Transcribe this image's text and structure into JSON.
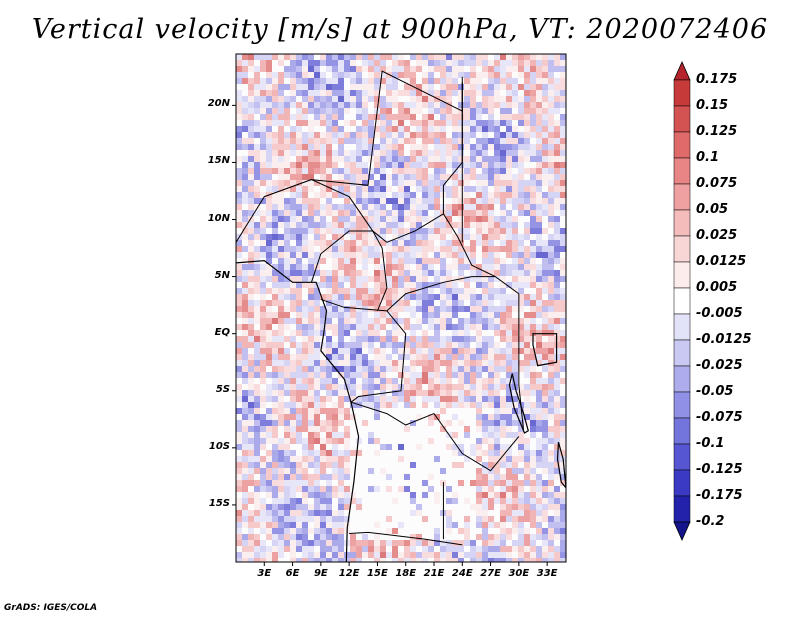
{
  "title": "Vertical velocity [m/s] at 900hPa, VT: 2020072406",
  "footer": "GrADS: IGES/COLA",
  "map": {
    "lat_labels": [
      "20N",
      "15N",
      "10N",
      "5N",
      "EQ",
      "5S",
      "10S",
      "15S"
    ],
    "lat_values": [
      20,
      15,
      10,
      5,
      0,
      -5,
      -10,
      -15
    ],
    "lon_labels": [
      "3E",
      "6E",
      "9E",
      "12E",
      "15E",
      "18E",
      "21E",
      "24E",
      "27E",
      "30E",
      "33E"
    ],
    "lon_values": [
      3,
      6,
      9,
      12,
      15,
      18,
      21,
      24,
      27,
      30,
      33
    ],
    "lat_range": [
      -20,
      24.5
    ],
    "lon_range": [
      0,
      35
    ]
  },
  "colorbar": {
    "labels": [
      "0.175",
      "0.15",
      "0.125",
      "0.1",
      "0.075",
      "0.05",
      "0.025",
      "0.0125",
      "0.005",
      "-0.005",
      "-0.0125",
      "-0.025",
      "-0.05",
      "-0.075",
      "-0.1",
      "-0.125",
      "-0.175",
      "-0.2"
    ],
    "colors": [
      "#b5242c",
      "#c63a3a",
      "#d35252",
      "#df6a6a",
      "#e88585",
      "#efa0a0",
      "#f5bcbc",
      "#f9d6d6",
      "#fcecec",
      "#ffffff",
      "#e2e2f8",
      "#c9c9f3",
      "#adadee",
      "#9090e6",
      "#7474dd",
      "#5656d2",
      "#3a3ac4",
      "#2222aa",
      "#14148c"
    ]
  }
}
